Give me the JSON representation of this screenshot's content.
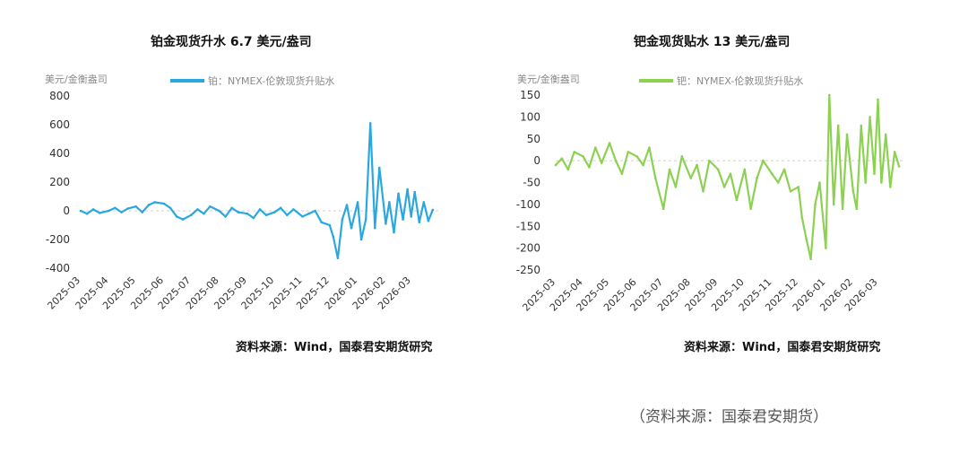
{
  "chart_data": [
    {
      "type": "line",
      "title": "铂金现货升水 6.7 美元/盎司",
      "unit_label": "美元/金衡盎司",
      "ylim": [
        -400,
        800
      ],
      "yticks": [
        -400,
        -200,
        0,
        200,
        400,
        600,
        800
      ],
      "grid": false,
      "legend_position": "top",
      "color": "#29a8e0",
      "categories": [
        "2025-03",
        "2025-04",
        "2025-05",
        "2025-06",
        "2025-07",
        "2025-08",
        "2025-09",
        "2025-10",
        "2025-11",
        "2025-12",
        "2026-01",
        "2026-02",
        "2026-03"
      ],
      "series": [
        {
          "name": "铂：NYMEX-伦敦现货升贴水",
          "x": [
            "2025-03-01",
            "2025-03-08",
            "2025-03-15",
            "2025-03-22",
            "2025-04-01",
            "2025-04-08",
            "2025-04-15",
            "2025-04-22",
            "2025-05-01",
            "2025-05-08",
            "2025-05-15",
            "2025-05-22",
            "2025-06-01",
            "2025-06-08",
            "2025-06-15",
            "2025-06-22",
            "2025-07-01",
            "2025-07-08",
            "2025-07-15",
            "2025-07-22",
            "2025-08-01",
            "2025-08-08",
            "2025-08-15",
            "2025-08-22",
            "2025-09-01",
            "2025-09-08",
            "2025-09-15",
            "2025-09-22",
            "2025-10-01",
            "2025-10-08",
            "2025-10-15",
            "2025-10-22",
            "2025-11-01",
            "2025-11-08",
            "2025-11-15",
            "2025-11-22",
            "2025-12-01",
            "2025-12-05",
            "2025-12-10",
            "2025-12-15",
            "2025-12-20",
            "2025-12-25",
            "2026-01-01",
            "2026-01-05",
            "2026-01-10",
            "2026-01-15",
            "2026-01-20",
            "2026-01-25",
            "2026-02-01",
            "2026-02-05",
            "2026-02-10",
            "2026-02-15",
            "2026-02-20",
            "2026-02-25",
            "2026-03-01",
            "2026-03-05",
            "2026-03-10",
            "2026-03-15",
            "2026-03-20",
            "2026-03-25"
          ],
          "y": [
            0,
            -20,
            10,
            -15,
            0,
            20,
            -10,
            15,
            30,
            -10,
            40,
            60,
            50,
            20,
            -40,
            -60,
            -30,
            10,
            -20,
            30,
            0,
            -40,
            20,
            -10,
            -20,
            -50,
            10,
            -30,
            -10,
            20,
            -30,
            10,
            -40,
            -20,
            0,
            -80,
            -100,
            -180,
            -330,
            -60,
            40,
            -120,
            60,
            -200,
            -60,
            610,
            -120,
            300,
            -90,
            60,
            -150,
            120,
            -60,
            150,
            -40,
            130,
            -80,
            60,
            -70,
            6.7
          ]
        }
      ]
    },
    {
      "type": "line",
      "title": "钯金现货贴水 13 美元/盎司",
      "unit_label": "美元/金衡盎司",
      "ylim": [
        -250,
        150
      ],
      "yticks": [
        -250,
        -200,
        -150,
        -100,
        -50,
        0,
        50,
        100,
        150
      ],
      "grid": false,
      "legend_position": "top",
      "color": "#8cd152",
      "categories": [
        "2025-03",
        "2025-04",
        "2025-05",
        "2025-06",
        "2025-07",
        "2025-08",
        "2025-09",
        "2025-10",
        "2025-11",
        "2025-12",
        "2026-01",
        "2026-02",
        "2026-03"
      ],
      "series": [
        {
          "name": "钯：NYMEX-伦敦现货升贴水",
          "x": [
            "2025-03-01",
            "2025-03-08",
            "2025-03-15",
            "2025-03-22",
            "2025-04-01",
            "2025-04-08",
            "2025-04-15",
            "2025-04-22",
            "2025-05-01",
            "2025-05-08",
            "2025-05-15",
            "2025-05-22",
            "2025-06-01",
            "2025-06-08",
            "2025-06-15",
            "2025-06-22",
            "2025-07-01",
            "2025-07-08",
            "2025-07-15",
            "2025-07-22",
            "2025-08-01",
            "2025-08-08",
            "2025-08-15",
            "2025-08-22",
            "2025-09-01",
            "2025-09-08",
            "2025-09-15",
            "2025-09-22",
            "2025-10-01",
            "2025-10-08",
            "2025-10-15",
            "2025-10-22",
            "2025-11-01",
            "2025-11-08",
            "2025-11-15",
            "2025-11-22",
            "2025-12-01",
            "2025-12-05",
            "2025-12-10",
            "2025-12-15",
            "2025-12-20",
            "2025-12-25",
            "2026-01-01",
            "2026-01-05",
            "2026-01-10",
            "2026-01-15",
            "2026-01-20",
            "2026-01-25",
            "2026-02-01",
            "2026-02-05",
            "2026-02-10",
            "2026-02-15",
            "2026-02-20",
            "2026-02-25",
            "2026-03-01",
            "2026-03-05",
            "2026-03-10",
            "2026-03-15",
            "2026-03-20",
            "2026-03-25"
          ],
          "y": [
            -10,
            5,
            -20,
            20,
            10,
            -15,
            30,
            -5,
            40,
            0,
            -30,
            20,
            10,
            -10,
            30,
            -40,
            -110,
            -20,
            -60,
            10,
            -40,
            -10,
            -70,
            0,
            -20,
            -60,
            -30,
            -90,
            -20,
            -110,
            -40,
            0,
            -30,
            -50,
            -20,
            -70,
            -60,
            -130,
            -180,
            -225,
            -100,
            -50,
            -200,
            150,
            -100,
            80,
            -110,
            60,
            -70,
            -110,
            80,
            -50,
            100,
            -30,
            140,
            -50,
            60,
            -60,
            20,
            -13
          ]
        }
      ]
    }
  ],
  "sources": {
    "left": "资料来源：Wind，国泰君安期货研究",
    "right": "资料来源：Wind，国泰君安期货研究",
    "bottom": "（资料来源：国泰君安期货）"
  }
}
